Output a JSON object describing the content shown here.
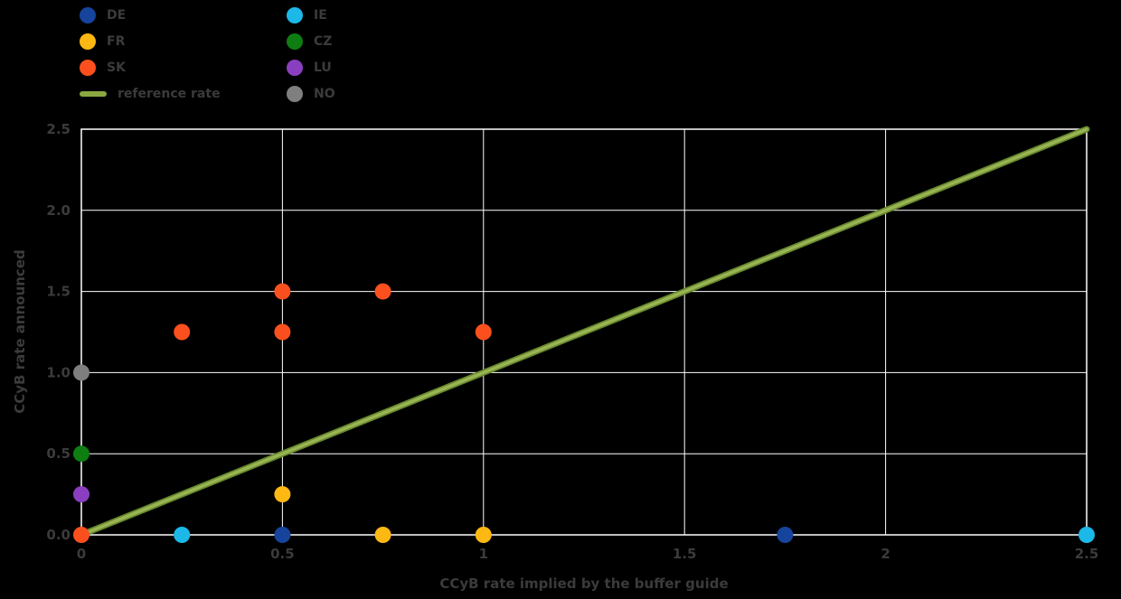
{
  "style": {
    "background": "#000000",
    "grid_color": "#ffffff",
    "text_color": "#3b3b3b",
    "marker_radius": 9,
    "tick_font_size": 15
  },
  "legend": {
    "columns": [
      [
        {
          "label": "DE",
          "color": "#16449c",
          "type": "dot"
        },
        {
          "label": "FR",
          "color": "#fdb813",
          "type": "dot"
        },
        {
          "label": "SK",
          "color": "#fb501e",
          "type": "dot"
        },
        {
          "label": "reference rate",
          "color": "#8aa742",
          "type": "line"
        }
      ],
      [
        {
          "label": "IE",
          "color": "#1cb8e8",
          "type": "dot"
        },
        {
          "label": "CZ",
          "color": "#0e7d12",
          "type": "dot"
        },
        {
          "label": "LU",
          "color": "#8a3fc0",
          "type": "dot"
        },
        {
          "label": "NO",
          "color": "#7f7f7f",
          "type": "dot"
        }
      ]
    ]
  },
  "chart_data": {
    "type": "scatter",
    "title": "",
    "xlabel": "CCyB rate implied by the buffer guide",
    "ylabel": "CCyB rate announced",
    "xlim": [
      0,
      2.5
    ],
    "ylim": [
      0,
      2.5
    ],
    "grid": true,
    "legend_position": "top-left",
    "xticks": [
      0,
      0.5,
      1,
      1.5,
      2,
      2.5
    ],
    "xtick_labels": [
      "0",
      "0.5",
      "1",
      "1.5",
      "2",
      "2.5"
    ],
    "yticks": [
      0,
      0.5,
      1,
      1.5,
      2,
      2.5
    ],
    "ytick_labels": [
      "0.0",
      "0.5",
      "1.0",
      "1.5",
      "2.0",
      "2.5"
    ],
    "series": [
      {
        "name": "DE",
        "color": "#16449c",
        "points": [
          [
            0.5,
            0
          ],
          [
            1.75,
            0
          ]
        ]
      },
      {
        "name": "FR",
        "color": "#fdb813",
        "points": [
          [
            0.5,
            0.25
          ],
          [
            0.75,
            0
          ],
          [
            1.0,
            0
          ]
        ]
      },
      {
        "name": "SK",
        "color": "#fb501e",
        "points": [
          [
            0,
            0
          ],
          [
            0.25,
            1.25
          ],
          [
            0.5,
            1.25
          ],
          [
            0.5,
            1.5
          ],
          [
            0.75,
            1.5
          ],
          [
            1.0,
            1.25
          ]
        ]
      },
      {
        "name": "IE",
        "color": "#1cb8e8",
        "points": [
          [
            0.25,
            0
          ],
          [
            2.5,
            0
          ]
        ]
      },
      {
        "name": "CZ",
        "color": "#0e7d12",
        "points": [
          [
            0,
            0.5
          ]
        ]
      },
      {
        "name": "LU",
        "color": "#8a3fc0",
        "points": [
          [
            0,
            0.25
          ]
        ]
      },
      {
        "name": "NO",
        "color": "#7f7f7f",
        "points": [
          [
            0,
            1.0
          ]
        ]
      }
    ],
    "reference_line": {
      "label": "reference rate",
      "from": [
        0,
        0
      ],
      "to": [
        2.5,
        2.5
      ],
      "color": "#9ab454",
      "edge_color": "#678a2e"
    }
  }
}
